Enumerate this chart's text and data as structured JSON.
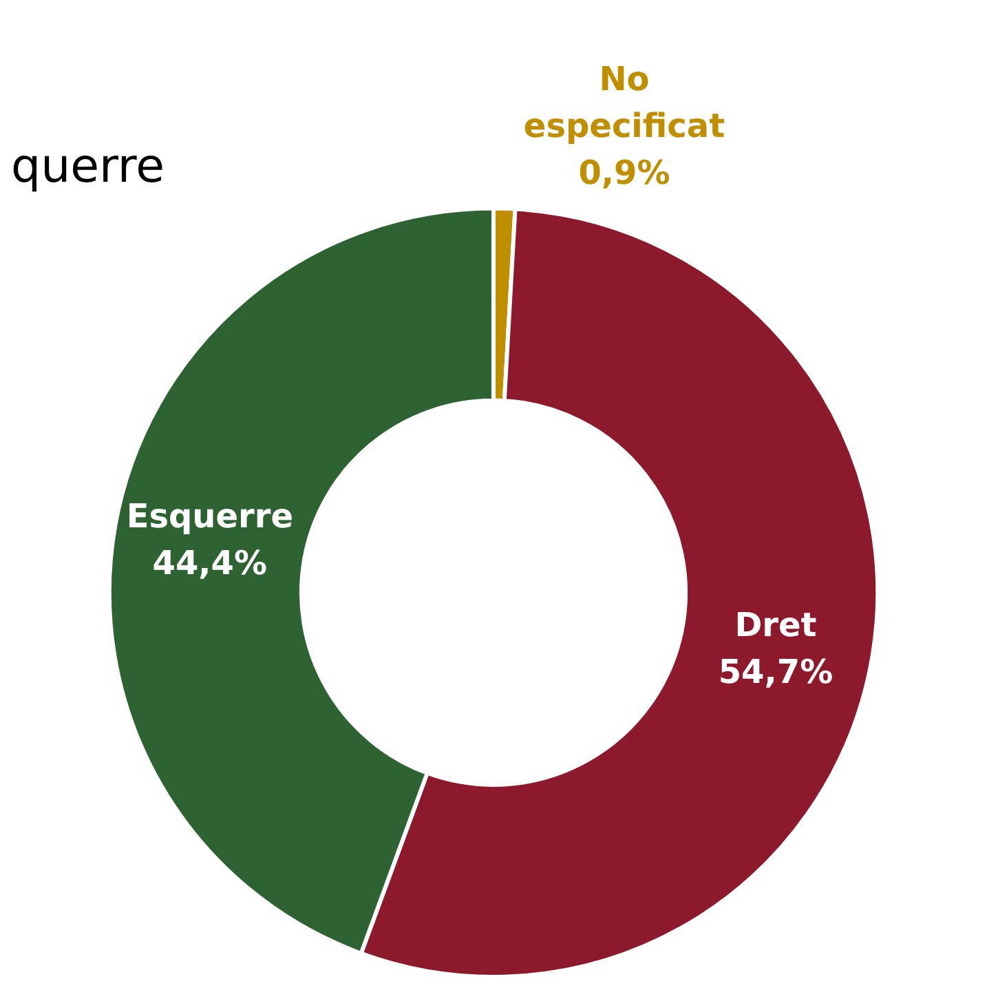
{
  "chart_data": {
    "type": "donut",
    "title": "querre",
    "categories": [
      "No especificat",
      "Dret",
      "Esquerre"
    ],
    "values": [
      0.9,
      54.7,
      44.4
    ],
    "colors": [
      "#bf8f00",
      "#8c1a2c",
      "#2e6233"
    ],
    "value_labels": [
      "0,9%",
      "54,7%",
      "44,4%"
    ],
    "legend": false
  }
}
